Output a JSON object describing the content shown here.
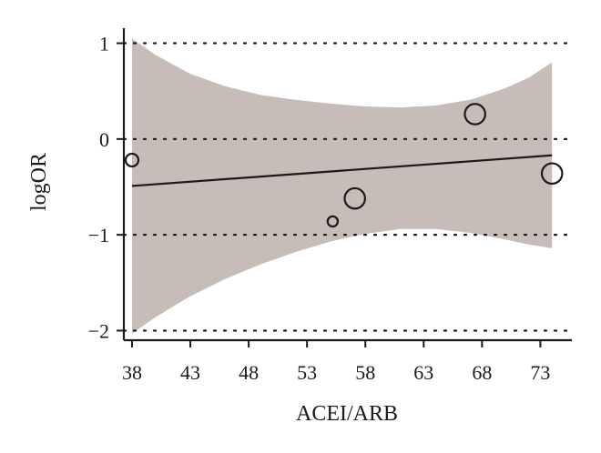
{
  "chart_data": {
    "type": "scatter",
    "title": "",
    "xlabel": "ACEI/ARB",
    "ylabel": "logOR",
    "xlim": [
      37.3,
      75.7
    ],
    "ylim": [
      -2.1,
      1.1
    ],
    "xticks": [
      38,
      43,
      48,
      53,
      58,
      63,
      68,
      73
    ],
    "xtick_labels": [
      "38",
      "43",
      "48",
      "53",
      "58",
      "63",
      "68",
      "73"
    ],
    "yticks": [
      1,
      0,
      -1,
      -2
    ],
    "ytick_labels": [
      "1",
      "0",
      "−1",
      "−2"
    ],
    "grid": "dotted horizontal at y ticks",
    "legend": "none",
    "points": [
      {
        "x": 38.0,
        "y": -0.22,
        "weight": 1.0
      },
      {
        "x": 55.2,
        "y": -0.86,
        "weight": 0.8
      },
      {
        "x": 57.1,
        "y": -0.62,
        "weight": 1.6
      },
      {
        "x": 67.4,
        "y": 0.26,
        "weight": 1.6
      },
      {
        "x": 74.0,
        "y": -0.36,
        "weight": 1.6
      }
    ],
    "fit_line": {
      "x": [
        38.0,
        74.0
      ],
      "y": [
        -0.49,
        -0.17
      ]
    },
    "confidence_band": {
      "x": [
        38,
        40,
        43,
        46,
        49,
        52,
        55,
        58,
        61,
        64,
        67,
        70,
        72,
        74
      ],
      "upper": [
        1.05,
        0.88,
        0.68,
        0.55,
        0.46,
        0.41,
        0.37,
        0.34,
        0.33,
        0.35,
        0.41,
        0.53,
        0.64,
        0.8
      ],
      "lower": [
        -2.03,
        -1.86,
        -1.64,
        -1.46,
        -1.31,
        -1.18,
        -1.07,
        -0.99,
        -0.94,
        -0.94,
        -0.98,
        -1.05,
        -1.1,
        -1.14
      ]
    },
    "colors": {
      "band": "#c6bcb8",
      "line": "#1a1a1a",
      "marker_edge": "#1a1a1a",
      "marker_fill": "#ffffff",
      "axis": "#1a1a1a",
      "grid": "#1a1a1a"
    }
  }
}
